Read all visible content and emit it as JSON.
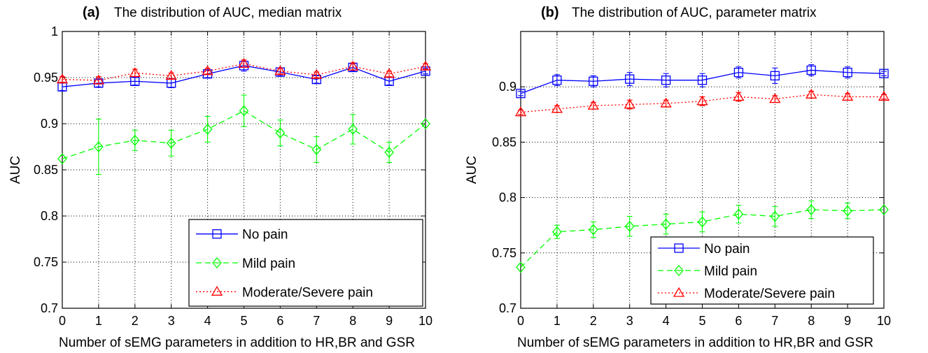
{
  "chart_data": [
    {
      "type": "line",
      "panel_tag": "(a)",
      "title": "The distribution of AUC, median matrix",
      "xlabel": "Number of sEMG parameters in addition to HR,BR and GSR",
      "ylabel": "AUC",
      "xlim": [
        0,
        10
      ],
      "ylim": [
        0.7,
        1.0
      ],
      "xticks": [
        "0",
        "1",
        "2",
        "3",
        "4",
        "5",
        "6",
        "7",
        "8",
        "9",
        "10"
      ],
      "yticks": [
        0.7,
        0.75,
        0.8,
        0.85,
        0.9,
        0.95,
        1
      ],
      "ytick_labels": [
        "0.7",
        "0.75",
        "0.8",
        "0.85",
        "0.9",
        "0.95",
        "1"
      ],
      "grid": true,
      "legend_position": "bottom-right",
      "x": [
        0,
        1,
        2,
        3,
        4,
        5,
        6,
        7,
        8,
        9,
        10
      ],
      "series": [
        {
          "name": "No pain",
          "color": "#0000ff",
          "marker": "square",
          "line": "solid",
          "values": [
            0.94,
            0.944,
            0.946,
            0.944,
            0.954,
            0.963,
            0.956,
            0.948,
            0.961,
            0.946,
            0.957
          ],
          "errors": [
            0.004,
            0.004,
            0.004,
            0.005,
            0.004,
            0.006,
            0.004,
            0.004,
            0.004,
            0.004,
            0.003
          ]
        },
        {
          "name": "Mild pain",
          "color": "#00ff00",
          "marker": "diamond",
          "line": "dashed",
          "values": [
            0.862,
            0.875,
            0.882,
            0.879,
            0.894,
            0.914,
            0.89,
            0.872,
            0.894,
            0.869,
            0.9
          ],
          "errors": [
            0.0,
            0.03,
            0.011,
            0.014,
            0.014,
            0.017,
            0.014,
            0.014,
            0.016,
            0.011,
            0.0
          ]
        },
        {
          "name": "Moderate/Severe pain",
          "color": "#ff0000",
          "marker": "triangle",
          "line": "dotted",
          "values": [
            0.948,
            0.947,
            0.955,
            0.952,
            0.957,
            0.965,
            0.957,
            0.953,
            0.962,
            0.954,
            0.962
          ],
          "errors": [
            0.003,
            0.004,
            0.004,
            0.003,
            0.003,
            0.004,
            0.003,
            0.003,
            0.004,
            0.003,
            0.003
          ]
        }
      ]
    },
    {
      "type": "line",
      "panel_tag": "(b)",
      "title": "The distribution of AUC, parameter matrix",
      "xlabel": "Number of sEMG parameters in addition to HR,BR and GSR",
      "ylabel": "AUC",
      "xlim": [
        0,
        10
      ],
      "ylim": [
        0.7,
        0.95
      ],
      "xticks": [
        "0",
        "1",
        "2",
        "3",
        "4",
        "5",
        "6",
        "7",
        "8",
        "9",
        "10"
      ],
      "yticks": [
        0.7,
        0.75,
        0.8,
        0.85,
        0.9
      ],
      "ytick_labels": [
        "0.7",
        "0.75",
        "0.8",
        "0.85",
        "0.9"
      ],
      "grid": true,
      "legend_position": "bottom-right",
      "x": [
        0,
        1,
        2,
        3,
        4,
        5,
        6,
        7,
        8,
        9,
        10
      ],
      "series": [
        {
          "name": "No pain",
          "color": "#0000ff",
          "marker": "square",
          "line": "solid",
          "values": [
            0.894,
            0.906,
            0.905,
            0.907,
            0.906,
            0.906,
            0.913,
            0.91,
            0.915,
            0.913,
            0.912
          ],
          "errors": [
            0.002,
            0.005,
            0.005,
            0.006,
            0.006,
            0.006,
            0.005,
            0.007,
            0.005,
            0.005,
            0.002
          ]
        },
        {
          "name": "Mild pain",
          "color": "#00ff00",
          "marker": "diamond",
          "line": "dashed",
          "values": [
            0.737,
            0.769,
            0.771,
            0.774,
            0.776,
            0.778,
            0.785,
            0.783,
            0.789,
            0.788,
            0.789
          ],
          "errors": [
            0.0,
            0.006,
            0.007,
            0.009,
            0.009,
            0.009,
            0.008,
            0.009,
            0.008,
            0.007,
            0.0
          ]
        },
        {
          "name": "Moderate/Severe pain",
          "color": "#ff0000",
          "marker": "triangle",
          "line": "dotted",
          "values": [
            0.877,
            0.88,
            0.883,
            0.884,
            0.885,
            0.887,
            0.891,
            0.889,
            0.893,
            0.891,
            0.891
          ],
          "errors": [
            0.002,
            0.003,
            0.003,
            0.004,
            0.003,
            0.004,
            0.004,
            0.003,
            0.003,
            0.003,
            0.002
          ]
        }
      ]
    }
  ]
}
